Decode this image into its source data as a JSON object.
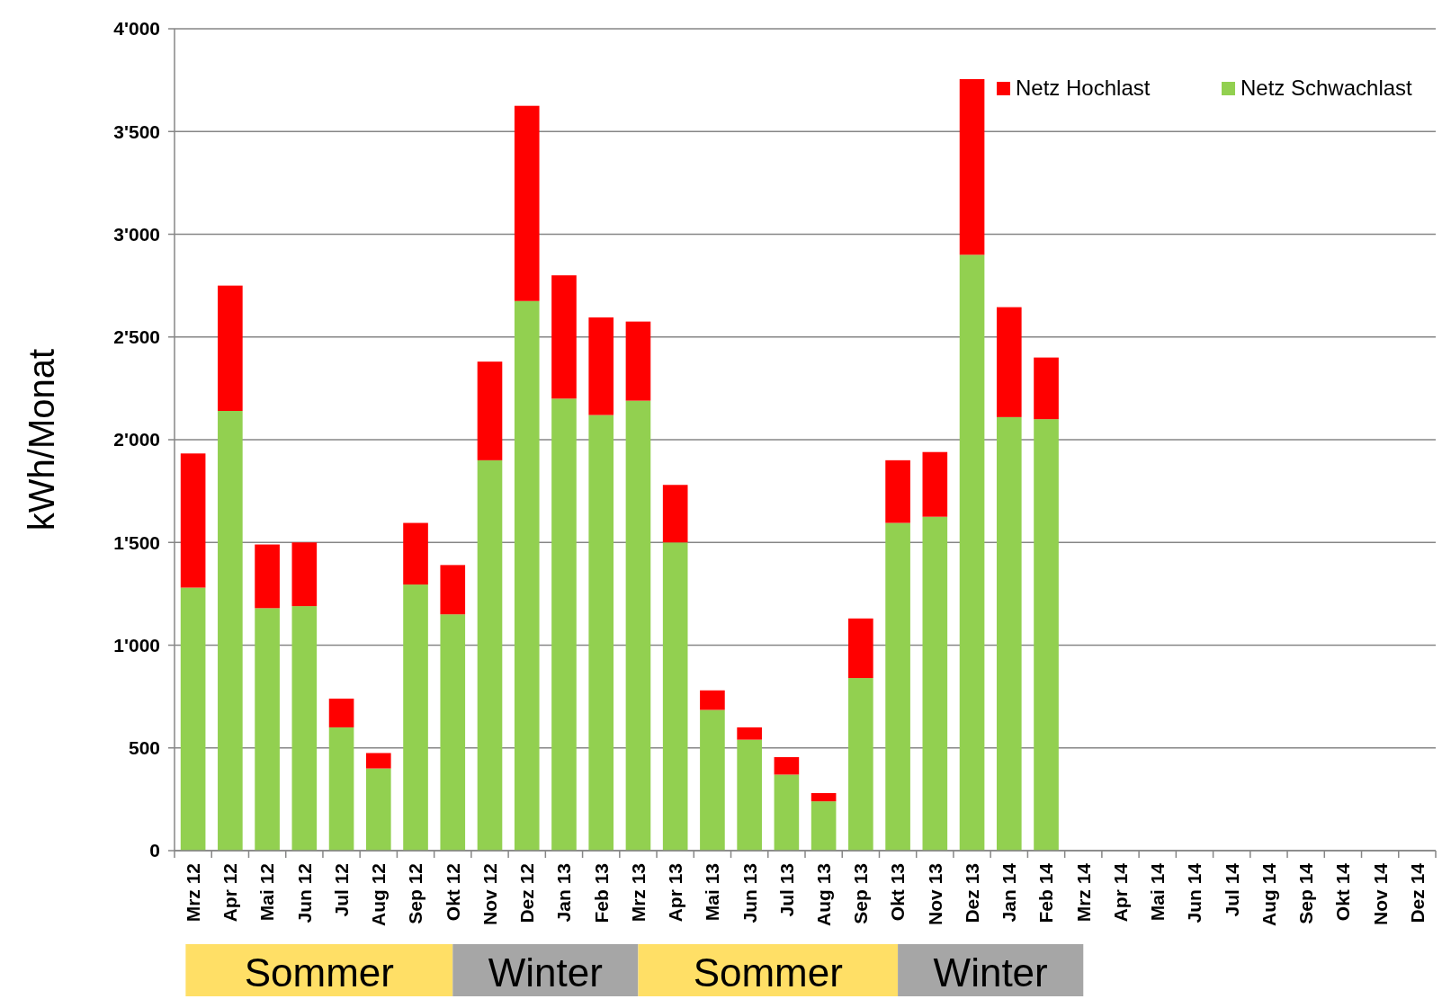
{
  "chart_data": {
    "type": "bar",
    "ylabel": "kWh/Monat",
    "stacked": true,
    "grid": "y",
    "legend": "top right",
    "categories": [
      "Mrz 12",
      "Apr 12",
      "Mai 12",
      "Jun 12",
      "Jul 12",
      "Aug 12",
      "Sep 12",
      "Okt 12",
      "Nov 12",
      "Dez 12",
      "Jan 13",
      "Feb 13",
      "Mrz 13",
      "Apr 13",
      "Mai 13",
      "Jun 13",
      "Jul 13",
      "Aug 13",
      "Sep 13",
      "Okt 13",
      "Nov 13",
      "Dez 13",
      "Jan 14",
      "Feb 14",
      "Mrz 14",
      "Apr 14",
      "Mai 14",
      "Jun 14",
      "Jul 14",
      "Aug 14",
      "Sep 14",
      "Okt 14",
      "Nov 14",
      "Dez 14"
    ],
    "series": [
      {
        "name": "Netz Schwachlast",
        "color": "#92d050",
        "values": [
          1280,
          2140,
          1180,
          1190,
          600,
          400,
          1295,
          1150,
          1900,
          2675,
          2200,
          2120,
          2190,
          1500,
          685,
          540,
          370,
          240,
          840,
          1595,
          1625,
          2900,
          2110,
          2100,
          null,
          null,
          null,
          null,
          null,
          null,
          null,
          null,
          null,
          null
        ]
      },
      {
        "name": "Netz Hochlast",
        "color": "#ff0000",
        "values": [
          653,
          610,
          310,
          310,
          140,
          75,
          300,
          240,
          480,
          950,
          600,
          475,
          385,
          280,
          95,
          60,
          85,
          40,
          290,
          305,
          315,
          855,
          535,
          300,
          null,
          null,
          null,
          null,
          null,
          null,
          null,
          null,
          null,
          null
        ]
      }
    ],
    "ylim": [
      0,
      4000
    ],
    "yticks": [
      0,
      {
        "value": 500,
        "label": "500"
      },
      {
        "value": 1000,
        "label": "1'000"
      },
      {
        "value": 1500,
        "label": "1'500"
      },
      {
        "value": 2000,
        "label": "2'000"
      },
      {
        "value": 2500,
        "label": "2'500"
      },
      {
        "value": 3000,
        "label": "3'000"
      },
      {
        "value": 3500,
        "label": "3'500"
      },
      {
        "value": 4000,
        "label": "4'000"
      }
    ],
    "annotations": [
      "Sommer",
      "Winter",
      "Sommer",
      "Winter"
    ]
  }
}
